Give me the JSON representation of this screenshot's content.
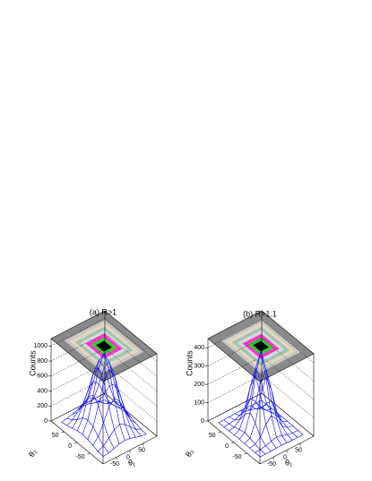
{
  "chart_data": [
    {
      "type": "surface",
      "title": "(a) R>1",
      "zlabel": "Counts",
      "xlabel": "θ₁",
      "ylabel": "θ₂",
      "color": "#0000ff",
      "x": [
        -80,
        -60,
        -40,
        -20,
        0,
        20,
        40,
        60,
        80
      ],
      "y": [
        -80,
        -60,
        -40,
        -20,
        0,
        20,
        40,
        60,
        80
      ],
      "z": [
        [
          5,
          17,
          38,
          62,
          73,
          62,
          38,
          17,
          5
        ],
        [
          17,
          53,
          120,
          195,
          230,
          195,
          120,
          53,
          17
        ],
        [
          38,
          120,
          270,
          441,
          520,
          441,
          270,
          120,
          38
        ],
        [
          62,
          195,
          441,
          721,
          849,
          721,
          441,
          195,
          62
        ],
        [
          73,
          230,
          520,
          849,
          1000,
          849,
          520,
          230,
          73
        ],
        [
          62,
          195,
          441,
          721,
          849,
          721,
          441,
          195,
          62
        ],
        [
          38,
          120,
          270,
          441,
          520,
          441,
          270,
          120,
          38
        ],
        [
          17,
          53,
          120,
          195,
          230,
          195,
          120,
          53,
          17
        ],
        [
          5,
          17,
          38,
          62,
          73,
          62,
          38,
          17,
          5
        ]
      ],
      "xlim": [
        -100,
        100
      ],
      "xticks": [
        -50,
        0,
        50
      ],
      "ylim": [
        -100,
        100
      ],
      "yticks": [
        -50,
        0,
        50
      ],
      "zlim": [
        0,
        1100
      ],
      "zticks": [
        0,
        200,
        400,
        600,
        800,
        1000
      ]
    },
    {
      "type": "surface",
      "title": "(b) R>1.1",
      "zlabel": "Counts",
      "xlabel": "θ₁",
      "ylabel": "θ₂",
      "color": "#0000ff",
      "x": [
        -80,
        -60,
        -40,
        -20,
        0,
        20,
        40,
        60,
        80
      ],
      "y": [
        -80,
        -60,
        -40,
        -20,
        0,
        20,
        40,
        60,
        80
      ],
      "z": [
        [
          0,
          0,
          1,
          2,
          3,
          2,
          1,
          0,
          0
        ],
        [
          0,
          1,
          7,
          17,
          24,
          17,
          7,
          1,
          0
        ],
        [
          1,
          7,
          32,
          85,
          117,
          85,
          32,
          7,
          1
        ],
        [
          2,
          17,
          85,
          221,
          305,
          221,
          85,
          17,
          2
        ],
        [
          3,
          24,
          117,
          305,
          420,
          305,
          117,
          24,
          3
        ],
        [
          2,
          17,
          85,
          221,
          305,
          221,
          85,
          17,
          2
        ],
        [
          1,
          7,
          32,
          85,
          117,
          85,
          32,
          7,
          1
        ],
        [
          0,
          1,
          7,
          17,
          24,
          17,
          7,
          1,
          0
        ],
        [
          0,
          0,
          1,
          2,
          3,
          2,
          1,
          0,
          0
        ]
      ],
      "xlim": [
        -100,
        100
      ],
      "xticks": [
        -50,
        0,
        50
      ],
      "ylim": [
        -100,
        100
      ],
      "yticks": [
        -50,
        0,
        50
      ],
      "zlim": [
        0,
        450
      ],
      "zticks": [
        0,
        100,
        200,
        300,
        400
      ]
    }
  ]
}
